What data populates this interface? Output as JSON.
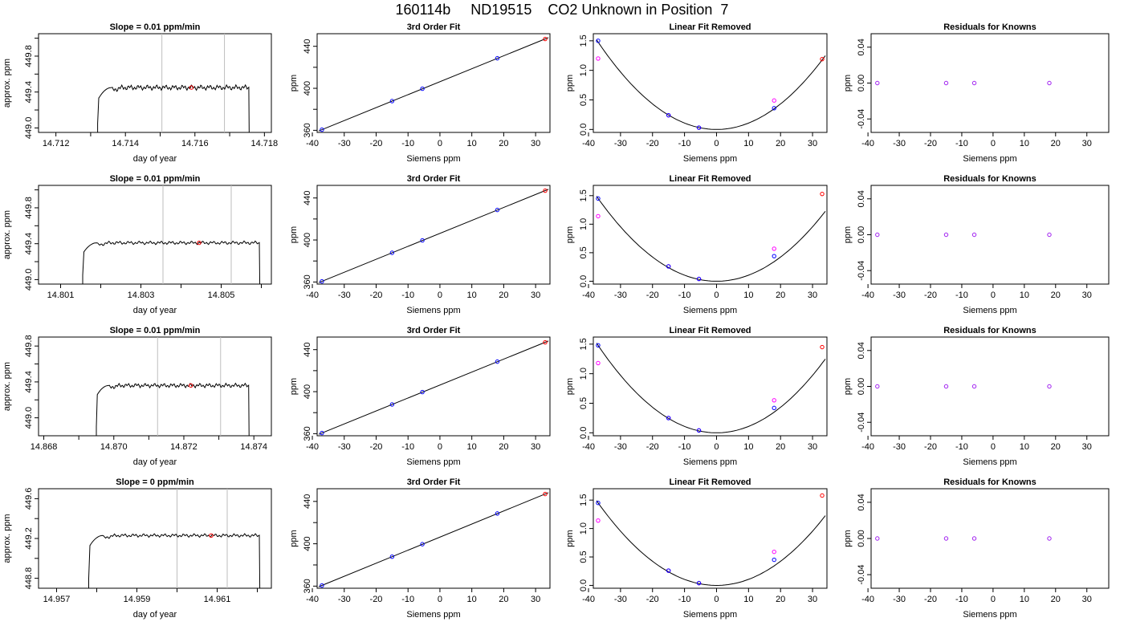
{
  "title": "160114b     ND19515    CO2 Unknown in Position  7",
  "colors": {
    "trace": "#000000",
    "known_point": "#0000ff",
    "unknown_point": "#ff0000",
    "residual_point": "#a020f0",
    "fit_point": "#ff00ff",
    "window_line": "#bebebe",
    "axes": "#000000"
  },
  "chart_data": [
    {
      "type": "line",
      "row": 1,
      "panel": "timeseries",
      "title": "Slope =  0.01  ppm/min",
      "xlabel": "day of year",
      "ylabel": "approx. ppm",
      "xlim": [
        14.7115,
        14.7182
      ],
      "ylim": [
        448.95,
        450.05
      ],
      "xticks": [
        14.712,
        14.714,
        14.716,
        14.718
      ],
      "xtick_labels": [
        "14.712",
        "14.714",
        "14.716",
        "14.718"
      ],
      "yticks": [
        449.0,
        449.4,
        449.8
      ],
      "ytick_labels": [
        "449.0",
        "449.4",
        "449.8"
      ],
      "trace": {
        "start": 14.7132,
        "rise_end": 14.7136,
        "end": 14.71755,
        "plateau": 449.45,
        "wave_amp": 0.03,
        "rise_curve": 0.12
      },
      "window": [
        14.71505,
        14.71685
      ],
      "unknown_point": {
        "x": 14.7159,
        "y": 449.45
      }
    },
    {
      "type": "line",
      "row": 2,
      "panel": "timeseries",
      "title": "Slope =  0.01  ppm/min",
      "xlabel": "day of year",
      "ylabel": "approx. ppm",
      "xlim": [
        14.80045,
        14.80625
      ],
      "ylim": [
        448.95,
        450.05
      ],
      "xticks": [
        14.801,
        14.803,
        14.805
      ],
      "xtick_labels": [
        "14.801",
        "14.803",
        "14.805"
      ],
      "yticks": [
        449.0,
        449.4,
        449.8
      ],
      "ytick_labels": [
        "449.0",
        "449.4",
        "449.8"
      ],
      "trace": {
        "start": 14.80155,
        "rise_end": 14.8019,
        "end": 14.80595,
        "plateau": 449.41,
        "wave_amp": 0.02,
        "rise_curve": 0.1
      },
      "window": [
        14.80355,
        14.80525
      ],
      "unknown_point": {
        "x": 14.80445,
        "y": 449.41
      }
    },
    {
      "type": "line",
      "row": 3,
      "panel": "timeseries",
      "title": "Slope =  0.01  ppm/min",
      "xlabel": "day of year",
      "ylabel": "approx. ppm",
      "xlim": [
        14.86785,
        14.8745
      ],
      "ylim": [
        448.8,
        449.9
      ],
      "xticks": [
        14.868,
        14.87,
        14.872,
        14.874
      ],
      "xtick_labels": [
        "14.868",
        "14.870",
        "14.872",
        "14.874"
      ],
      "yticks": [
        449.0,
        449.4,
        449.8
      ],
      "ytick_labels": [
        "449.0",
        "449.4",
        "449.8"
      ],
      "trace": {
        "start": 14.8695,
        "rise_end": 14.86985,
        "end": 14.87385,
        "plateau": 449.36,
        "wave_amp": 0.025,
        "rise_curve": 0.1
      },
      "window": [
        14.87125,
        14.87305
      ],
      "unknown_point": {
        "x": 14.8722,
        "y": 449.36
      }
    },
    {
      "type": "line",
      "row": 4,
      "panel": "timeseries",
      "title": "Slope =  0  ppm/min",
      "xlabel": "day of year",
      "ylabel": "approx. ppm",
      "xlim": [
        14.95655,
        14.96235
      ],
      "ylim": [
        448.7,
        449.7
      ],
      "xticks": [
        14.957,
        14.959,
        14.961
      ],
      "xtick_labels": [
        "14.957",
        "14.959",
        "14.961"
      ],
      "yticks": [
        448.8,
        449.2,
        449.6
      ],
      "ytick_labels": [
        "448.8",
        "449.2",
        "449.6"
      ],
      "trace": {
        "start": 14.9578,
        "rise_end": 14.95815,
        "end": 14.96205,
        "plateau": 449.23,
        "wave_amp": 0.018,
        "rise_curve": 0.1
      },
      "window": [
        14.96,
        14.96125
      ],
      "unknown_point": {
        "x": 14.96085,
        "y": 449.23
      }
    },
    {
      "type": "line",
      "row": 1,
      "panel": "fit",
      "title": "3rd Order Fit",
      "xlabel": "Siemens ppm",
      "ylabel": "ppm",
      "xlim": [
        -38.5,
        34.5
      ],
      "ylim": [
        358,
        452
      ],
      "xticks": [
        -40,
        -30,
        -20,
        -10,
        0,
        10,
        20,
        30
      ],
      "yticks": [
        360,
        400,
        440
      ],
      "fit_line": {
        "slope": 1.234,
        "intercept": 406.3
      },
      "knowns": [
        {
          "x": -37,
          "y": 360.6
        },
        {
          "x": -15,
          "y": 387.8
        },
        {
          "x": -5.5,
          "y": 399.6
        },
        {
          "x": 18,
          "y": 428.6
        }
      ],
      "unknown": {
        "x": 33,
        "y": 447
      }
    },
    {
      "type": "line",
      "row": 2,
      "panel": "fit",
      "title": "3rd Order Fit",
      "xlabel": "Siemens ppm",
      "ylabel": "ppm",
      "xlim": [
        -38.5,
        34.5
      ],
      "ylim": [
        358,
        452
      ],
      "xticks": [
        -40,
        -30,
        -20,
        -10,
        0,
        10,
        20,
        30
      ],
      "yticks": [
        360,
        400,
        440
      ],
      "fit_line": {
        "slope": 1.234,
        "intercept": 406.3
      },
      "knowns": [
        {
          "x": -37,
          "y": 360.6
        },
        {
          "x": -15,
          "y": 387.8
        },
        {
          "x": -5.5,
          "y": 399.6
        },
        {
          "x": 18,
          "y": 428.6
        }
      ],
      "unknown": {
        "x": 33,
        "y": 447
      }
    },
    {
      "type": "line",
      "row": 3,
      "panel": "fit",
      "title": "3rd Order Fit",
      "xlabel": "Siemens ppm",
      "ylabel": "ppm",
      "xlim": [
        -38.5,
        34.5
      ],
      "ylim": [
        358,
        452
      ],
      "xticks": [
        -40,
        -30,
        -20,
        -10,
        0,
        10,
        20,
        30
      ],
      "yticks": [
        360,
        400,
        440
      ],
      "fit_line": {
        "slope": 1.234,
        "intercept": 406.3
      },
      "knowns": [
        {
          "x": -37,
          "y": 360.6
        },
        {
          "x": -15,
          "y": 387.8
        },
        {
          "x": -5.5,
          "y": 399.6
        },
        {
          "x": 18,
          "y": 428.6
        }
      ],
      "unknown": {
        "x": 33,
        "y": 447
      }
    },
    {
      "type": "line",
      "row": 4,
      "panel": "fit",
      "title": "3rd Order Fit",
      "xlabel": "Siemens ppm",
      "ylabel": "ppm",
      "xlim": [
        -38.5,
        34.5
      ],
      "ylim": [
        358,
        452
      ],
      "xticks": [
        -40,
        -30,
        -20,
        -10,
        0,
        10,
        20,
        30
      ],
      "yticks": [
        360,
        400,
        440
      ],
      "fit_line": {
        "slope": 1.234,
        "intercept": 406.3
      },
      "knowns": [
        {
          "x": -37,
          "y": 360.6
        },
        {
          "x": -15,
          "y": 387.8
        },
        {
          "x": -5.5,
          "y": 399.6
        },
        {
          "x": 18,
          "y": 428.6
        }
      ],
      "unknown": {
        "x": 33,
        "y": 447
      }
    },
    {
      "type": "line",
      "row": 1,
      "panel": "linear_removed",
      "title": "Linear Fit Removed",
      "xlabel": "Siemens ppm",
      "ylabel": "ppm",
      "xlim": [
        -38.5,
        34.5
      ],
      "ylim": [
        -0.05,
        1.62
      ],
      "xticks": [
        -40,
        -30,
        -20,
        -10,
        0,
        10,
        20,
        30
      ],
      "yticks": [
        0.0,
        0.5,
        1.0,
        1.5
      ],
      "ytick_labels": [
        "0.0",
        "0.5",
        "1.0",
        "1.5"
      ],
      "curve": {
        "a": 0.00108,
        "b": 0.0,
        "c": 0.0,
        "xfrom": -37.5,
        "xto": 34
      },
      "knowns": [
        {
          "x": -37,
          "y": 1.5
        },
        {
          "x": -15,
          "y": 0.24
        },
        {
          "x": -5.5,
          "y": 0.03
        },
        {
          "x": 18,
          "y": 0.36
        }
      ],
      "unknown": {
        "x": 33,
        "y": 1.19
      },
      "raw": [
        {
          "x": -37,
          "y": 1.2
        },
        {
          "x": -15,
          "y": 0.24
        },
        {
          "x": -5.5,
          "y": 0.03
        },
        {
          "x": 18,
          "y": 0.49
        }
      ]
    },
    {
      "type": "line",
      "row": 2,
      "panel": "linear_removed",
      "title": "Linear Fit Removed",
      "xlabel": "Siemens ppm",
      "ylabel": "ppm",
      "xlim": [
        -38.5,
        34.5
      ],
      "ylim": [
        -0.05,
        1.68
      ],
      "xticks": [
        -40,
        -30,
        -20,
        -10,
        0,
        10,
        20,
        30
      ],
      "yticks": [
        0.0,
        0.5,
        1.0,
        1.5
      ],
      "ytick_labels": [
        "0.0",
        "0.5",
        "1.0",
        "1.5"
      ],
      "curve": {
        "a": 0.00106,
        "b": 0.0,
        "c": 0.0,
        "xfrom": -37.5,
        "xto": 34
      },
      "knowns": [
        {
          "x": -37,
          "y": 1.45
        },
        {
          "x": -15,
          "y": 0.26
        },
        {
          "x": -5.5,
          "y": 0.04
        },
        {
          "x": 18,
          "y": 0.44
        }
      ],
      "unknown": {
        "x": 33,
        "y": 1.53
      },
      "raw": [
        {
          "x": -37,
          "y": 1.14
        },
        {
          "x": -15,
          "y": 0.26
        },
        {
          "x": -5.5,
          "y": 0.04
        },
        {
          "x": 18,
          "y": 0.57
        }
      ]
    },
    {
      "type": "line",
      "row": 3,
      "panel": "linear_removed",
      "title": "Linear Fit Removed",
      "xlabel": "Siemens ppm",
      "ylabel": "ppm",
      "xlim": [
        -38.5,
        34.5
      ],
      "ylim": [
        -0.05,
        1.62
      ],
      "xticks": [
        -40,
        -30,
        -20,
        -10,
        0,
        10,
        20,
        30
      ],
      "yticks": [
        0.0,
        0.5,
        1.0,
        1.5
      ],
      "ytick_labels": [
        "0.0",
        "0.5",
        "1.0",
        "1.5"
      ],
      "curve": {
        "a": 0.00108,
        "b": 0.0,
        "c": 0.0,
        "xfrom": -37.5,
        "xto": 34
      },
      "knowns": [
        {
          "x": -37,
          "y": 1.48
        },
        {
          "x": -15,
          "y": 0.25
        },
        {
          "x": -5.5,
          "y": 0.04
        },
        {
          "x": 18,
          "y": 0.42
        }
      ],
      "unknown": {
        "x": 33,
        "y": 1.45
      },
      "raw": [
        {
          "x": -37,
          "y": 1.18
        },
        {
          "x": -15,
          "y": 0.25
        },
        {
          "x": -5.5,
          "y": 0.04
        },
        {
          "x": 18,
          "y": 0.55
        }
      ]
    },
    {
      "type": "line",
      "row": 4,
      "panel": "linear_removed",
      "title": "Linear Fit Removed",
      "xlabel": "Siemens ppm",
      "ylabel": "ppm",
      "xlim": [
        -38.5,
        34.5
      ],
      "ylim": [
        -0.05,
        1.7
      ],
      "xticks": [
        -40,
        -30,
        -20,
        -10,
        0,
        10,
        20,
        30
      ],
      "yticks": [
        0.0,
        0.5,
        1.0,
        1.5
      ],
      "ytick_labels": [
        "0.0",
        "0.5",
        "1.0",
        "1.5"
      ],
      "curve": {
        "a": 0.00106,
        "b": 0.0,
        "c": 0.0,
        "xfrom": -37.5,
        "xto": 34
      },
      "knowns": [
        {
          "x": -37,
          "y": 1.45
        },
        {
          "x": -15,
          "y": 0.26
        },
        {
          "x": -5.5,
          "y": 0.04
        },
        {
          "x": 18,
          "y": 0.45
        }
      ],
      "unknown": {
        "x": 33,
        "y": 1.58
      },
      "raw": [
        {
          "x": -37,
          "y": 1.14
        },
        {
          "x": -15,
          "y": 0.26
        },
        {
          "x": -5.5,
          "y": 0.04
        },
        {
          "x": 18,
          "y": 0.59
        }
      ]
    },
    {
      "type": "scatter",
      "row": 1,
      "panel": "residuals",
      "title": "Residuals for Knowns",
      "xlabel": "Siemens ppm",
      "ylabel": "ppm",
      "xlim": [
        -39,
        37
      ],
      "ylim": [
        -0.055,
        0.055
      ],
      "xticks": [
        -40,
        -30,
        -20,
        -10,
        0,
        10,
        20,
        30
      ],
      "yticks": [
        -0.04,
        0.0,
        0.04
      ],
      "ytick_labels": [
        "-0.04",
        "0.00",
        "0.04"
      ],
      "points": [
        {
          "x": -37,
          "y": 0
        },
        {
          "x": -15,
          "y": 0
        },
        {
          "x": -6,
          "y": 0
        },
        {
          "x": 18,
          "y": 0
        }
      ]
    },
    {
      "type": "scatter",
      "row": 2,
      "panel": "residuals",
      "title": "Residuals for Knowns",
      "xlabel": "Siemens ppm",
      "ylabel": "ppm",
      "xlim": [
        -39,
        37
      ],
      "ylim": [
        -0.055,
        0.055
      ],
      "xticks": [
        -40,
        -30,
        -20,
        -10,
        0,
        10,
        20,
        30
      ],
      "yticks": [
        -0.04,
        0.0,
        0.04
      ],
      "ytick_labels": [
        "-0.04",
        "0.00",
        "0.04"
      ],
      "points": [
        {
          "x": -37,
          "y": 0
        },
        {
          "x": -15,
          "y": 0
        },
        {
          "x": -6,
          "y": 0
        },
        {
          "x": 18,
          "y": 0
        }
      ]
    },
    {
      "type": "scatter",
      "row": 3,
      "panel": "residuals",
      "title": "Residuals for Knowns",
      "xlabel": "Siemens ppm",
      "ylabel": "ppm",
      "xlim": [
        -39,
        37
      ],
      "ylim": [
        -0.055,
        0.055
      ],
      "xticks": [
        -40,
        -30,
        -20,
        -10,
        0,
        10,
        20,
        30
      ],
      "yticks": [
        -0.04,
        0.0,
        0.04
      ],
      "ytick_labels": [
        "-0.04",
        "0.00",
        "0.04"
      ],
      "points": [
        {
          "x": -37,
          "y": 0
        },
        {
          "x": -15,
          "y": 0
        },
        {
          "x": -6,
          "y": 0
        },
        {
          "x": 18,
          "y": 0
        }
      ]
    },
    {
      "type": "scatter",
      "row": 4,
      "panel": "residuals",
      "title": "Residuals for Knowns",
      "xlabel": "Siemens ppm",
      "ylabel": "ppm",
      "xlim": [
        -39,
        37
      ],
      "ylim": [
        -0.055,
        0.055
      ],
      "xticks": [
        -40,
        -30,
        -20,
        -10,
        0,
        10,
        20,
        30
      ],
      "yticks": [
        -0.04,
        0.0,
        0.04
      ],
      "ytick_labels": [
        "-0.04",
        "0.00",
        "0.04"
      ],
      "points": [
        {
          "x": -37,
          "y": 0
        },
        {
          "x": -15,
          "y": 0
        },
        {
          "x": -6,
          "y": 0
        },
        {
          "x": 18,
          "y": 0
        }
      ]
    }
  ]
}
